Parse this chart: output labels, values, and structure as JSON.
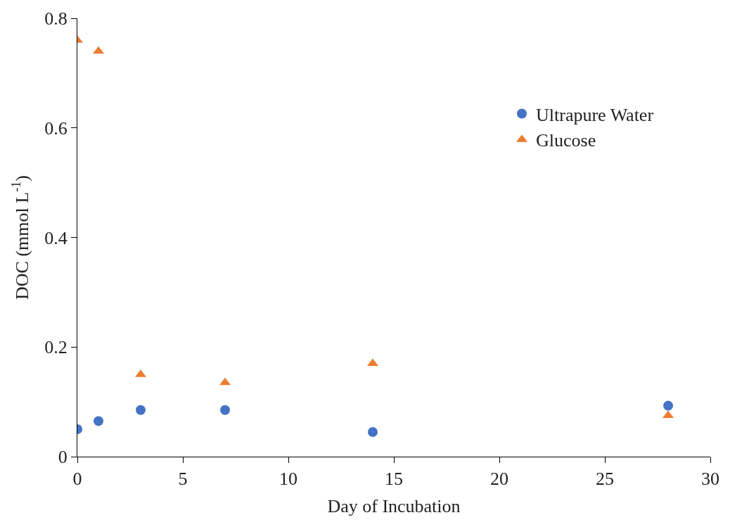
{
  "chart_data": {
    "type": "scatter",
    "xlabel": "Day of Incubation",
    "ylabel": "DOC (mmol L$^{-1}$)",
    "x": [
      0,
      1,
      3,
      7,
      14,
      28
    ],
    "series": [
      {
        "name": "Ultrapure Water",
        "color": "#4472c4",
        "marker": "circle",
        "values": [
          0.05,
          0.065,
          0.085,
          0.085,
          0.045,
          0.093
        ]
      },
      {
        "name": "Glucose",
        "color": "#ed7d31",
        "marker": "triangle",
        "values": [
          0.76,
          0.74,
          0.15,
          0.135,
          0.17,
          0.075
        ]
      }
    ],
    "xlim": [
      0,
      30
    ],
    "xticks": [
      0,
      5,
      10,
      15,
      20,
      25,
      30
    ],
    "ylim": [
      0,
      0.8
    ],
    "yticks": [
      0,
      0.2,
      0.4,
      0.6,
      0.8
    ],
    "legend": "right"
  }
}
